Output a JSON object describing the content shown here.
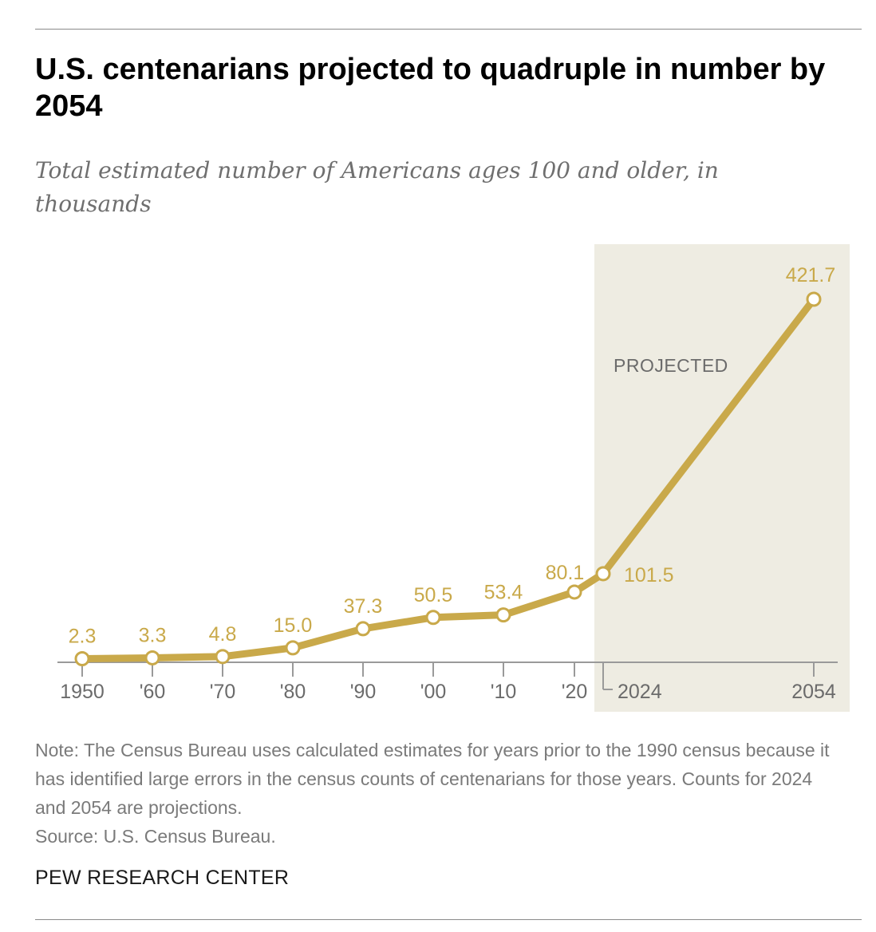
{
  "title": "U.S. centenarians projected to quadruple in number by 2054",
  "subtitle": "Total estimated number of Americans ages 100 and older, in thousands",
  "chart_data": {
    "type": "line",
    "x": [
      1950,
      1960,
      1970,
      1980,
      1990,
      2000,
      2010,
      2020,
      2024,
      2054
    ],
    "y": [
      2.3,
      3.3,
      4.8,
      15.0,
      37.3,
      50.5,
      53.4,
      80.1,
      101.5,
      421.7
    ],
    "data_labels": [
      "2.3",
      "3.3",
      "4.8",
      "15.0",
      "37.3",
      "50.5",
      "53.4",
      "80.1",
      "101.5",
      "421.7"
    ],
    "x_tick_labels": [
      "1950",
      "'60",
      "'70",
      "'80",
      "'90",
      "'00",
      "'10",
      "'20",
      "2024",
      "2054"
    ],
    "ylim": [
      0,
      450
    ],
    "projected_region": {
      "label": "PROJECTED",
      "from": 2024,
      "to": 2054
    },
    "grid": false,
    "colors": {
      "line": "#c9a94a",
      "label": "#c9a94a",
      "projected_bg": "#eeece2",
      "axis": "#9a9a9a"
    }
  },
  "note": {
    "text": "Note: The Census Bureau uses calculated estimates for years prior to the 1990 census because it has identified large errors in the census counts of centenarians for those years. Counts for 2024 and 2054 are projections.",
    "source": "Source: U.S. Census Bureau."
  },
  "brand": "PEW RESEARCH CENTER"
}
